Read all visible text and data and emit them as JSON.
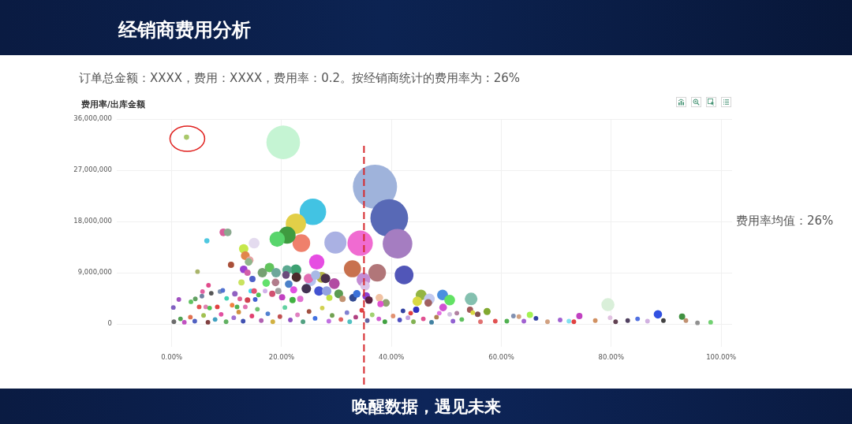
{
  "chart_data": {
    "type": "bubble",
    "title": "经销商费用分析",
    "subtitle": "订单总金额：XXXX，费用：XXXX，费用率：0.2。按经销商统计的费用率为 : 26%",
    "ylabel": "费用率/出库金额",
    "annotations": [
      "费用率均值：26%",
      "唤醒数据，遇见未来"
    ],
    "x": [
      37.0,
      39.6,
      20.3,
      41.1,
      25.7,
      34.3,
      29.8,
      22.6,
      42.3,
      23.6,
      37.4,
      21.0,
      32.9,
      26.4,
      19.2,
      34.9,
      79.4,
      54.5,
      45.4,
      49.3,
      50.6,
      46.9,
      22.6,
      27.3,
      29.6,
      25.3,
      15.0,
      44.7,
      24.5,
      26.8,
      28.2,
      28.0,
      24.9,
      26.2,
      17.8,
      16.5,
      19.0,
      21.0,
      22.7,
      13.1,
      35.2,
      20.8,
      17.2,
      18.9,
      21.3,
      13.4,
      14.2,
      14.0,
      13.1,
      9.4,
      10.2,
      30.4,
      31.1,
      33.0,
      33.7,
      35.4,
      35.9,
      37.8,
      39.0,
      38.0,
      46.7,
      44.5,
      49.4,
      57.4,
      54.3,
      88.5,
      92.9,
      74.2,
      65.2,
      4.7,
      6.4,
      2.7,
      10.8,
      13.8,
      14.7,
      12.7,
      6.7,
      7.2,
      22.2,
      42.1,
      43.5,
      48.7,
      54.8,
      55.7,
      51.9,
      50.6,
      62.2,
      63.2,
      66.3,
      70.7,
      77.1,
      79.8,
      80.8,
      83.0,
      84.8,
      89.5,
      93.6,
      98.1,
      86.6,
      73.2,
      72.3,
      68.4,
      95.7,
      64.1,
      61.0,
      58.9,
      1.3,
      0.3,
      3.5,
      4.3,
      5.0,
      5.5,
      5.6,
      6.2,
      6.9,
      8.3,
      8.8,
      9.3,
      10.0,
      11.0,
      11.5,
      12.4,
      11.9,
      13.4,
      13.8,
      14.4,
      15.0,
      15.2,
      15.8,
      17.0,
      18.3,
      19.4,
      20.1,
      22.0,
      23.4,
      28.7,
      0.4,
      1.6,
      2.3,
      3.4,
      4.2,
      5.8,
      6.6,
      7.9,
      9.0,
      9.9,
      11.3,
      12.2,
      13.0,
      14.6,
      15.6,
      16.3,
      17.5,
      18.4,
      19.7,
      20.6,
      21.6,
      22.9,
      23.9,
      25.0,
      26.1,
      27.4,
      28.6,
      29.2,
      30.8,
      31.9,
      32.4,
      33.5,
      34.6,
      35.6,
      36.5,
      37.7,
      38.8,
      40.3,
      41.5,
      43.0,
      44.0,
      45.8,
      47.3,
      48.2,
      51.2,
      52.8,
      56.2
    ],
    "values": [
      24100000,
      18600000,
      31900000,
      14100000,
      19700000,
      14200000,
      14300000,
      17600000,
      8600000,
      14200000,
      9000000,
      15600000,
      9700000,
      10900000,
      14900000,
      7800000,
      3400000,
      4400000,
      5100000,
      5100000,
      4200000,
      4400000,
      9500000,
      8200000,
      7100000,
      7600000,
      14200000,
      4000000,
      6200000,
      5800000,
      5800000,
      8000000,
      8000000,
      8600000,
      9900000,
      9000000,
      9000000,
      9500000,
      8200000,
      13200000,
      6700000,
      8600000,
      7200000,
      7300000,
      7000000,
      12000000,
      11200000,
      10900000,
      9600000,
      16100000,
      16100000,
      5300000,
      4400000,
      4600000,
      5300000,
      4900000,
      4200000,
      4600000,
      3700000,
      3500000,
      3700000,
      2500000,
      2900000,
      2200000,
      2500000,
      1700000,
      1300000,
      1400000,
      1600000,
      9200000,
      14600000,
      32800000,
      10400000,
      9000000,
      7900000,
      7300000,
      6800000,
      5400000,
      6000000,
      2300000,
      1900000,
      1900000,
      2000000,
      1700000,
      1900000,
      1700000,
      1400000,
      1300000,
      1000000,
      700000,
      600000,
      1100000,
      400000,
      600000,
      900000,
      600000,
      600000,
      300000,
      500000,
      400000,
      500000,
      400000,
      200000,
      500000,
      500000,
      500000,
      4300000,
      2900000,
      3900000,
      4400000,
      3000000,
      4900000,
      5700000,
      3000000,
      2800000,
      3000000,
      5700000,
      5900000,
      4500000,
      3300000,
      5300000,
      4400000,
      3000000,
      3000000,
      4200000,
      5800000,
      5800000,
      4300000,
      5100000,
      5800000,
      5300000,
      5800000,
      4700000,
      4200000,
      4400000,
      4600000,
      400000,
      900000,
      300000,
      1200000,
      500000,
      1500000,
      300000,
      800000,
      1700000,
      400000,
      1100000,
      2100000,
      500000,
      1400000,
      2600000,
      600000,
      1800000,
      400000,
      1300000,
      2900000,
      700000,
      1600000,
      400000,
      2200000,
      1000000,
      2800000,
      500000,
      1500000,
      800000,
      2000000,
      400000,
      1200000,
      2400000,
      600000,
      1600000,
      900000,
      400000,
      1400000,
      700000,
      1100000,
      400000,
      900000,
      300000,
      1200000,
      500000,
      800000,
      400000
    ],
    "sizes": [
      1,
      0.73,
      0.58,
      0.45,
      0.36,
      0.33,
      0.25,
      0.21,
      0.18,
      0.16,
      0.16,
      0.15,
      0.15,
      0.12,
      0.12,
      0.097,
      0.088,
      0.082,
      0.06,
      0.06,
      0.06,
      0.06,
      0.06,
      0.06,
      0.06,
      0.06,
      0.06,
      0.046,
      0.046,
      0.046,
      0.046,
      0.046,
      0.046,
      0.046,
      0.046,
      0.046,
      0.046,
      0.046,
      0.046,
      0.046,
      0.046,
      0.03,
      0.03,
      0.03,
      0.03,
      0.04,
      0.03,
      0.03,
      0.03,
      0.03,
      0.03,
      0.04,
      0.02,
      0.03,
      0.03,
      0.03,
      0.03,
      0.03,
      0.03,
      0.02,
      0.03,
      0.02,
      0.03,
      0.026,
      0.02,
      0.036,
      0.02,
      0.02,
      0.02,
      0.011,
      0.014,
      0.014,
      0.02,
      0.02,
      0.02,
      0.02,
      0.011,
      0.011,
      0.026,
      0.011,
      0.011,
      0.011,
      0.011,
      0.016,
      0.011,
      0.011,
      0.011,
      0.011,
      0.011,
      0.011,
      0.011,
      0.011,
      0.011,
      0.011,
      0.011,
      0.011,
      0.011,
      0.011,
      0.011,
      0.011,
      0.011,
      0.011,
      0.011,
      0.011,
      0.011,
      0.011,
      0.011,
      0.011,
      0.011,
      0.011,
      0.011,
      0.011,
      0.011,
      0.011,
      0.011,
      0.011,
      0.011,
      0.011,
      0.011,
      0.011,
      0.016,
      0.011,
      0.011,
      0.011,
      0.016,
      0.011,
      0.016,
      0.011,
      0.011,
      0.011,
      0.02,
      0.02,
      0.02,
      0.02,
      0.02,
      0.02,
      0.011,
      0.011,
      0.011,
      0.011,
      0.011,
      0.011,
      0.011,
      0.011,
      0.011,
      0.011,
      0.011,
      0.011,
      0.011,
      0.011,
      0.011,
      0.011,
      0.011,
      0.011,
      0.011,
      0.011,
      0.011,
      0.011,
      0.011,
      0.011,
      0.011,
      0.011,
      0.011,
      0.011,
      0.011,
      0.011,
      0.011,
      0.011,
      0.011,
      0.011,
      0.011,
      0.011,
      0.011,
      0.011,
      0.011,
      0.011,
      0.011,
      0.011,
      0.011,
      0.011,
      0.011,
      0.011,
      0.011
    ],
    "colors": [
      "#9fb3db",
      "#5869b6",
      "#c5f4d3",
      "#a57dc1",
      "#42c3e3",
      "#f06bd1",
      "#aab1e3",
      "#e2cf48",
      "#5156b8",
      "#ef806c",
      "#b17679",
      "#3f9b40",
      "#c8714e",
      "#e64de2",
      "#58d56c",
      "#c38cd3",
      "#d9efd9",
      "#84c0af",
      "#93b543",
      "#4b8fe0",
      "#62e264",
      "#c3caf0",
      "#3da172",
      "#b3b343",
      "#b24ca2",
      "#b3c1ef",
      "#e4dbef",
      "#d9d944",
      "#433352",
      "#4353d1",
      "#93a2e1",
      "#4b304b",
      "#e16cb2",
      "#a8b9e6",
      "#61c45c",
      "#76a172",
      "#6da79b",
      "#5ca991",
      "#4b2b2b",
      "#c6e84c",
      "#dbc2e9",
      "#6b4b7b",
      "#62e16c",
      "#b17b8b",
      "#4b81c9",
      "#e1864b",
      "#e8a2a2",
      "#90b68b",
      "#9c41d1",
      "#d85e9b",
      "#8ba98f",
      "#5b9b51",
      "#c29271",
      "#314991",
      "#3b71d9",
      "#8b41d1",
      "#5b2141",
      "#f1c2a2",
      "#91a171",
      "#e152d1",
      "#a16161",
      "#3131c1",
      "#d152d1",
      "#81a931",
      "#a15a5a",
      "#3151e1",
      "#419141",
      "#c141c1",
      "#a2f152",
      "#a9b46a",
      "#4fc8e0",
      "#a9c86a",
      "#a94f39",
      "#d15fa9",
      "#4e60c9",
      "#c9e35f",
      "#e14b8b",
      "#565656",
      "#e151e1",
      "#3141a1",
      "#e14141",
      "#e171e1",
      "#d9d941",
      "#815151",
      "#b181a1",
      "#d1c1e1",
      "#8191b1",
      "#d1a181",
      "#3141a1",
      "#a161d1",
      "#d19161",
      "#e1c1e1",
      "#614151",
      "#514161",
      "#5171e1",
      "#414141",
      "#c19171",
      "#71d171",
      "#d1b1e1",
      "#e14141",
      "#81e1f1",
      "#d1a181",
      "#919191",
      "#a161d1",
      "#51b151",
      "#e15151",
      "#a151c1",
      "#8161c1",
      "#61c161",
      "#61a161",
      "#e15151",
      "#7181a1",
      "#e161a1",
      "#e181b1",
      "#51c151",
      "#e14141",
      "#7b91b1",
      "#5171d1",
      "#41d1b1",
      "#f18141",
      "#9161c1",
      "#e16191",
      "#51b151",
      "#e171b1",
      "#d14151",
      "#41d9f1",
      "#e15171",
      "#4161d1",
      "#51c151",
      "#d1b1e9",
      "#d15171",
      "#a1a1a1",
      "#c141c1",
      "#41b141",
      "#e171d1",
      "#c1e141",
      "#6b6b6b",
      "#51a151",
      "#c151c1",
      "#e17151",
      "#5161c1",
      "#a1c151",
      "#814141",
      "#41a1c1",
      "#e151a1",
      "#61b161",
      "#a171d1",
      "#d19141",
      "#4151b1",
      "#e14171",
      "#71c171",
      "#b161b1",
      "#5181d1",
      "#d1b141",
      "#c15151",
      "#61d1a1",
      "#9151c1",
      "#e181c1",
      "#51a181",
      "#a15141",
      "#4171e1",
      "#d1d151",
      "#c171e1",
      "#71a151",
      "#e16161",
      "#8181d1",
      "#51c1c1",
      "#b14181",
      "#e14141",
      "#6161a1",
      "#a1d171",
      "#d161d1",
      "#41a141",
      "#e19171",
      "#5151c1",
      "#c1a1e1",
      "#81b151",
      "#e15191",
      "#4181a1",
      "#b18151",
      "#9161d1",
      "#61c161",
      "#e17171"
    ],
    "xlim": [
      -10,
      102
    ],
    "ylim": [
      -4000000,
      36000000
    ],
    "xticks": [
      {
        "value": 0,
        "label": "0.00%"
      },
      {
        "value": 20,
        "label": "20.00%"
      },
      {
        "value": 40,
        "label": "40.00%"
      },
      {
        "value": 60,
        "label": "60.00%"
      },
      {
        "value": 80,
        "label": "80.00%"
      },
      {
        "value": 100,
        "label": "100.00%"
      }
    ],
    "yticks": [
      0,
      {
        "value": 9000000,
        "label": "9,000,000"
      },
      {
        "value": 18000000,
        "label": "18,000,000"
      },
      {
        "value": 27000000,
        "label": "27,000,000"
      },
      {
        "value": 36000000,
        "label": "36,000,000"
      }
    ],
    "grid": true,
    "ref_lines": [
      {
        "axis": "x",
        "value": 35,
        "color": "#d62a2e",
        "line_style": "dashed"
      }
    ]
  }
}
